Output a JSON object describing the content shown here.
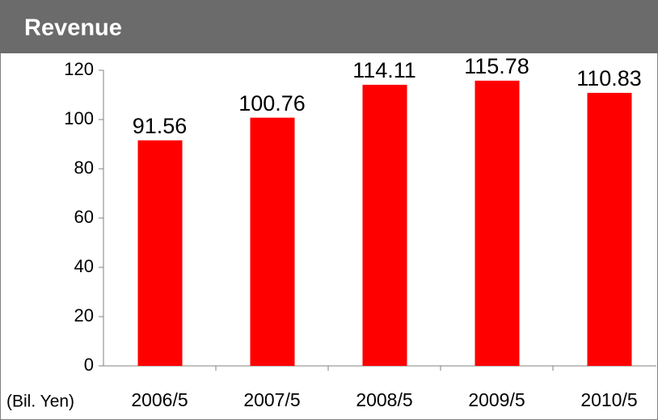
{
  "chart_data": {
    "type": "bar",
    "title": "Revenue",
    "unit_label": "(Bil. Yen)",
    "categories": [
      "2006/5",
      "2007/5",
      "2008/5",
      "2009/5",
      "2010/5"
    ],
    "values": [
      91.56,
      100.76,
      114.11,
      115.78,
      110.83
    ],
    "color": "#ff0000",
    "ylim": [
      0,
      120
    ],
    "yticks": [
      0,
      20,
      40,
      60,
      80,
      100,
      120
    ],
    "grid": false
  }
}
